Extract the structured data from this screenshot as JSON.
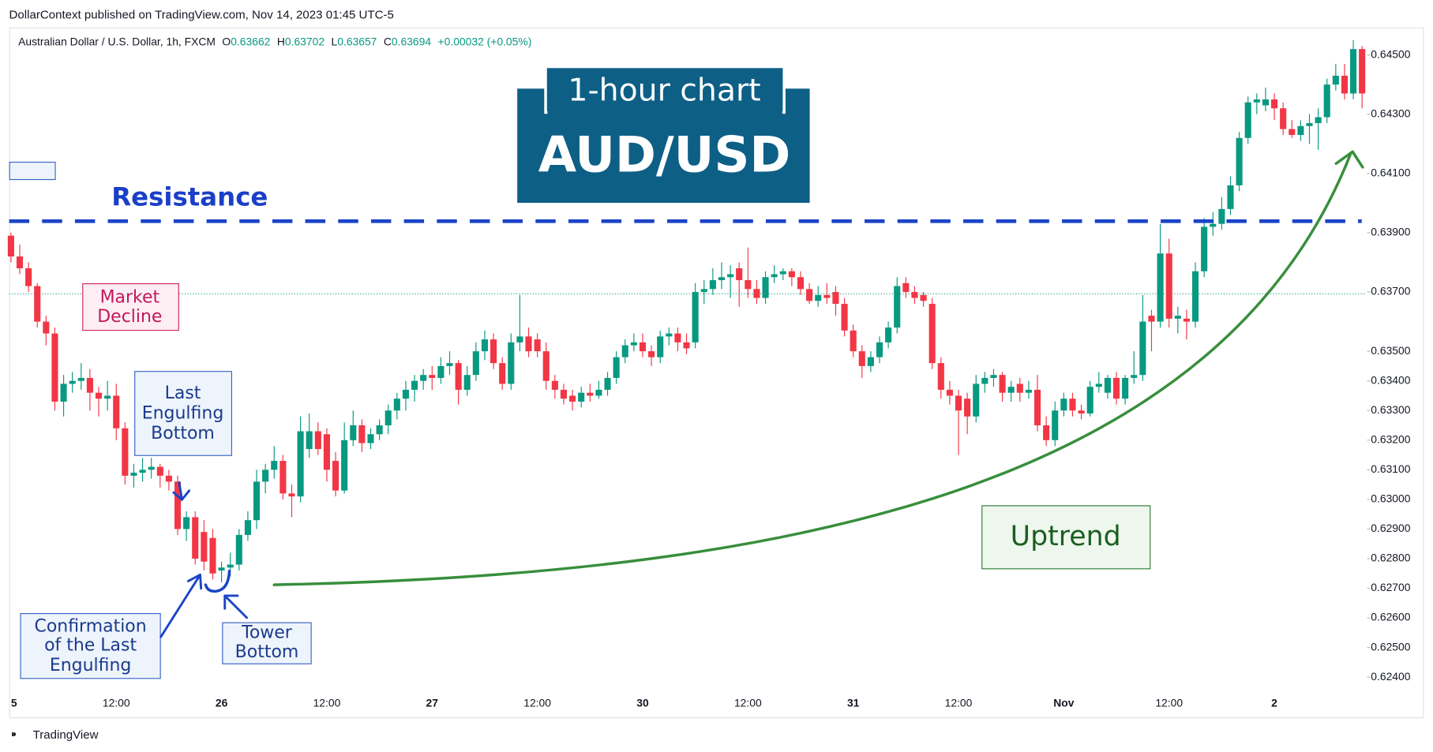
{
  "chart_data": {
    "type": "candlestick",
    "publisher": "DollarContext published on TradingView.com, Nov 14, 2023 01:45 UTC-5",
    "symbol": "Australian Dollar / U.S. Dollar, 1h, FXCM",
    "header_ohlc": [
      {
        "label": "O",
        "value": 0.63662
      },
      {
        "label": "H",
        "value": 0.63702
      },
      {
        "label": "L",
        "value": 0.63657
      },
      {
        "label": "C",
        "value": 0.63694
      }
    ],
    "change": "+0.00032 (+0.05%)",
    "title": "1-hour chart",
    "subtitle": "AUD/USD",
    "resistance_label": "Resistance",
    "resistance": 0.63939,
    "annotations": {
      "market_decline": [
        "Market",
        "Decline"
      ],
      "last_engulfing": [
        "Last",
        "Engulfing",
        "Bottom"
      ],
      "confirmation": [
        "Confirmation",
        "of the Last",
        "Engulfing"
      ],
      "tower_bottom": [
        "Tower",
        "Bottom"
      ],
      "uptrend": "Uptrend"
    },
    "footer": "TradingView",
    "up_color": "#089981",
    "down_color": "#f23645",
    "grid": false,
    "ylim": [
      0.62351,
      0.64593
    ],
    "yticks": [
      {
        "value": 0.645,
        "label": "0.64500"
      },
      {
        "value": 0.643,
        "label": "0.64300"
      },
      {
        "value": 0.641,
        "label": "0.64100"
      },
      {
        "value": 0.639,
        "label": "0.63900"
      },
      {
        "value": 0.637,
        "label": "0.63700"
      },
      {
        "value": 0.635,
        "label": "0.63500"
      },
      {
        "value": 0.634,
        "label": "0.63400"
      },
      {
        "value": 0.633,
        "label": "0.63300"
      },
      {
        "value": 0.632,
        "label": "0.63200"
      },
      {
        "value": 0.631,
        "label": "0.63100"
      },
      {
        "value": 0.63,
        "label": "0.63000"
      },
      {
        "value": 0.629,
        "label": "0.62900"
      },
      {
        "value": 0.628,
        "label": "0.62800"
      },
      {
        "value": 0.627,
        "label": "0.62700"
      },
      {
        "value": 0.626,
        "label": "0.62600"
      },
      {
        "value": 0.625,
        "label": "0.62500"
      },
      {
        "value": 0.624,
        "label": "0.62400"
      }
    ],
    "categories": [
      "5",
      null,
      null,
      null,
      null,
      null,
      null,
      null,
      null,
      null,
      null,
      null,
      "12:00",
      null,
      null,
      null,
      null,
      null,
      null,
      null,
      null,
      null,
      null,
      null,
      "26",
      null,
      null,
      null,
      null,
      null,
      null,
      null,
      null,
      null,
      null,
      null,
      "12:00",
      null,
      null,
      null,
      null,
      null,
      null,
      null,
      null,
      null,
      null,
      null,
      "27",
      null,
      null,
      null,
      null,
      null,
      null,
      null,
      null,
      null,
      null,
      null,
      "12:00",
      null,
      null,
      null,
      null,
      null,
      null,
      null,
      null,
      null,
      null,
      null,
      "30",
      null,
      null,
      null,
      null,
      null,
      null,
      null,
      null,
      null,
      null,
      null,
      "12:00",
      null,
      null,
      null,
      null,
      null,
      null,
      null,
      null,
      null,
      null,
      null,
      "31",
      null,
      null,
      null,
      null,
      null,
      null,
      null,
      null,
      null,
      null,
      null,
      "12:00",
      null,
      null,
      null,
      null,
      null,
      null,
      null,
      null,
      null,
      null,
      null,
      "Nov",
      null,
      null,
      null,
      null,
      null,
      null,
      null,
      null,
      null,
      null,
      null,
      "12:00",
      null,
      null,
      null,
      null,
      null,
      null,
      null,
      null,
      null,
      null,
      null,
      "2",
      null,
      null,
      null,
      null,
      null,
      null,
      null,
      null,
      null,
      null
    ],
    "ohlc": [
      [
        0.6389,
        0.639,
        0.638,
        0.6382
      ],
      [
        0.6382,
        0.6386,
        0.6376,
        0.6378
      ],
      [
        0.6378,
        0.638,
        0.637,
        0.6372
      ],
      [
        0.6372,
        0.6373,
        0.6358,
        0.636
      ],
      [
        0.636,
        0.6362,
        0.6352,
        0.6356
      ],
      [
        0.6356,
        0.6358,
        0.633,
        0.6333
      ],
      [
        0.6333,
        0.6342,
        0.6328,
        0.6339
      ],
      [
        0.6339,
        0.6343,
        0.6336,
        0.634
      ],
      [
        0.634,
        0.6346,
        0.6337,
        0.6341
      ],
      [
        0.6341,
        0.6344,
        0.633,
        0.6336
      ],
      [
        0.6336,
        0.6338,
        0.6328,
        0.6334
      ],
      [
        0.6334,
        0.634,
        0.633,
        0.6335
      ],
      [
        0.6335,
        0.6339,
        0.632,
        0.6324
      ],
      [
        0.6324,
        0.6326,
        0.6305,
        0.6308
      ],
      [
        0.6308,
        0.6312,
        0.6304,
        0.6309
      ],
      [
        0.6309,
        0.6314,
        0.6306,
        0.631
      ],
      [
        0.631,
        0.6314,
        0.6307,
        0.6311
      ],
      [
        0.6311,
        0.6312,
        0.6304,
        0.6308
      ],
      [
        0.6308,
        0.631,
        0.6303,
        0.6306
      ],
      [
        0.6306,
        0.6308,
        0.6288,
        0.629
      ],
      [
        0.629,
        0.6296,
        0.6286,
        0.6294
      ],
      [
        0.6294,
        0.6296,
        0.6278,
        0.628
      ],
      [
        0.6289,
        0.6293,
        0.6276,
        0.6279
      ],
      [
        0.6287,
        0.629,
        0.6273,
        0.6275
      ],
      [
        0.6276,
        0.6279,
        0.6272,
        0.6277
      ],
      [
        0.6277,
        0.6282,
        0.6274,
        0.6278
      ],
      [
        0.6278,
        0.629,
        0.6276,
        0.6288
      ],
      [
        0.6288,
        0.6296,
        0.6286,
        0.6293
      ],
      [
        0.6293,
        0.631,
        0.629,
        0.6306
      ],
      [
        0.6306,
        0.6312,
        0.6302,
        0.631
      ],
      [
        0.631,
        0.6318,
        0.6307,
        0.6313
      ],
      [
        0.6313,
        0.6315,
        0.63,
        0.6302
      ],
      [
        0.6302,
        0.6305,
        0.6294,
        0.6301
      ],
      [
        0.6301,
        0.6328,
        0.6299,
        0.6323
      ],
      [
        0.6317,
        0.6329,
        0.6314,
        0.6323
      ],
      [
        0.6323,
        0.6326,
        0.6315,
        0.6317
      ],
      [
        0.6322,
        0.6324,
        0.6306,
        0.631
      ],
      [
        0.6313,
        0.6316,
        0.6301,
        0.6303
      ],
      [
        0.6303,
        0.6326,
        0.6302,
        0.632
      ],
      [
        0.632,
        0.633,
        0.6318,
        0.6325
      ],
      [
        0.6325,
        0.6327,
        0.6316,
        0.6319
      ],
      [
        0.6319,
        0.6324,
        0.6317,
        0.6322
      ],
      [
        0.6322,
        0.6327,
        0.632,
        0.6325
      ],
      [
        0.6325,
        0.6332,
        0.6322,
        0.633
      ],
      [
        0.633,
        0.6336,
        0.6327,
        0.6334
      ],
      [
        0.6334,
        0.634,
        0.633,
        0.6337
      ],
      [
        0.6337,
        0.6342,
        0.6333,
        0.634
      ],
      [
        0.634,
        0.6344,
        0.6337,
        0.6342
      ],
      [
        0.6342,
        0.6345,
        0.6337,
        0.6341
      ],
      [
        0.6341,
        0.6348,
        0.6339,
        0.6345
      ],
      [
        0.6345,
        0.635,
        0.6342,
        0.6346
      ],
      [
        0.6346,
        0.6347,
        0.6332,
        0.6337
      ],
      [
        0.6337,
        0.6345,
        0.6335,
        0.6342
      ],
      [
        0.6342,
        0.6353,
        0.634,
        0.635
      ],
      [
        0.635,
        0.6357,
        0.6347,
        0.6354
      ],
      [
        0.6354,
        0.6356,
        0.6344,
        0.6346
      ],
      [
        0.6346,
        0.6348,
        0.6337,
        0.6339
      ],
      [
        0.6339,
        0.6356,
        0.6337,
        0.6353
      ],
      [
        0.6353,
        0.6369,
        0.635,
        0.6355
      ],
      [
        0.6355,
        0.6358,
        0.6348,
        0.635
      ],
      [
        0.6354,
        0.6356,
        0.6348,
        0.635
      ],
      [
        0.635,
        0.6353,
        0.6337,
        0.634
      ],
      [
        0.634,
        0.6342,
        0.6334,
        0.6337
      ],
      [
        0.6337,
        0.6339,
        0.6332,
        0.6334
      ],
      [
        0.6335,
        0.6337,
        0.633,
        0.6333
      ],
      [
        0.6333,
        0.6338,
        0.6331,
        0.6336
      ],
      [
        0.6336,
        0.6339,
        0.6333,
        0.6335
      ],
      [
        0.6335,
        0.634,
        0.6334,
        0.6337
      ],
      [
        0.6337,
        0.6343,
        0.6335,
        0.6341
      ],
      [
        0.6341,
        0.635,
        0.6339,
        0.6348
      ],
      [
        0.6348,
        0.6354,
        0.6346,
        0.6352
      ],
      [
        0.6352,
        0.6356,
        0.635,
        0.6353
      ],
      [
        0.6353,
        0.6356,
        0.6348,
        0.635
      ],
      [
        0.635,
        0.6352,
        0.6345,
        0.6348
      ],
      [
        0.6348,
        0.6357,
        0.6346,
        0.6355
      ],
      [
        0.6355,
        0.6358,
        0.6352,
        0.6356
      ],
      [
        0.6356,
        0.6358,
        0.635,
        0.6353
      ],
      [
        0.6353,
        0.6356,
        0.6349,
        0.6351
      ],
      [
        0.6353,
        0.6373,
        0.6351,
        0.637
      ],
      [
        0.637,
        0.6374,
        0.6366,
        0.6371
      ],
      [
        0.6371,
        0.6378,
        0.6369,
        0.6374
      ],
      [
        0.6374,
        0.638,
        0.6371,
        0.6375
      ],
      [
        0.6375,
        0.6379,
        0.6368,
        0.6376
      ],
      [
        0.6378,
        0.638,
        0.6365,
        0.6374
      ],
      [
        0.6374,
        0.6385,
        0.6368,
        0.6371
      ],
      [
        0.6371,
        0.6374,
        0.6366,
        0.6368
      ],
      [
        0.6368,
        0.6377,
        0.6366,
        0.6375
      ],
      [
        0.6375,
        0.6379,
        0.6373,
        0.6376
      ],
      [
        0.6376,
        0.6378,
        0.6374,
        0.6377
      ],
      [
        0.6377,
        0.6378,
        0.6372,
        0.6375
      ],
      [
        0.6375,
        0.6377,
        0.6369,
        0.6371
      ],
      [
        0.6371,
        0.6373,
        0.6366,
        0.6367
      ],
      [
        0.6367,
        0.6372,
        0.6365,
        0.6369
      ],
      [
        0.6369,
        0.6373,
        0.6366,
        0.6368
      ],
      [
        0.637,
        0.6372,
        0.6362,
        0.6366
      ],
      [
        0.6366,
        0.6368,
        0.6355,
        0.6357
      ],
      [
        0.6357,
        0.6359,
        0.6348,
        0.635
      ],
      [
        0.635,
        0.6352,
        0.6341,
        0.6345
      ],
      [
        0.6345,
        0.635,
        0.6343,
        0.6348
      ],
      [
        0.6348,
        0.6355,
        0.6346,
        0.6353
      ],
      [
        0.6353,
        0.636,
        0.6351,
        0.6358
      ],
      [
        0.6358,
        0.6375,
        0.6356,
        0.6372
      ],
      [
        0.6373,
        0.6375,
        0.6368,
        0.637
      ],
      [
        0.637,
        0.6372,
        0.6366,
        0.6368
      ],
      [
        0.6369,
        0.637,
        0.6365,
        0.6367
      ],
      [
        0.6366,
        0.6368,
        0.6344,
        0.6346
      ],
      [
        0.6346,
        0.6348,
        0.6334,
        0.6337
      ],
      [
        0.6337,
        0.634,
        0.6332,
        0.6335
      ],
      [
        0.6335,
        0.6337,
        0.6315,
        0.633
      ],
      [
        0.6334,
        0.6336,
        0.6322,
        0.6328
      ],
      [
        0.6328,
        0.6342,
        0.6326,
        0.6339
      ],
      [
        0.6339,
        0.6343,
        0.6336,
        0.6341
      ],
      [
        0.6341,
        0.6344,
        0.6338,
        0.6342
      ],
      [
        0.6342,
        0.6343,
        0.6333,
        0.6336
      ],
      [
        0.6336,
        0.634,
        0.6333,
        0.6338
      ],
      [
        0.6339,
        0.6341,
        0.6333,
        0.6336
      ],
      [
        0.6336,
        0.634,
        0.6334,
        0.6337
      ],
      [
        0.6337,
        0.6342,
        0.6323,
        0.6325
      ],
      [
        0.6325,
        0.6328,
        0.6318,
        0.632
      ],
      [
        0.632,
        0.6333,
        0.6318,
        0.633
      ],
      [
        0.633,
        0.6336,
        0.6328,
        0.6334
      ],
      [
        0.6334,
        0.6336,
        0.6328,
        0.633
      ],
      [
        0.633,
        0.6332,
        0.6327,
        0.6329
      ],
      [
        0.6329,
        0.634,
        0.6328,
        0.6338
      ],
      [
        0.6338,
        0.6343,
        0.6336,
        0.6339
      ],
      [
        0.6336,
        0.6342,
        0.6334,
        0.6341
      ],
      [
        0.6341,
        0.6343,
        0.6332,
        0.6334
      ],
      [
        0.6334,
        0.6342,
        0.6332,
        0.6341
      ],
      [
        0.6341,
        0.635,
        0.6339,
        0.6342
      ],
      [
        0.6342,
        0.6369,
        0.634,
        0.636
      ],
      [
        0.6362,
        0.6364,
        0.635,
        0.636
      ],
      [
        0.636,
        0.6393,
        0.6358,
        0.6383
      ],
      [
        0.6383,
        0.6388,
        0.6358,
        0.6361
      ],
      [
        0.6361,
        0.6365,
        0.6356,
        0.6362
      ],
      [
        0.6361,
        0.6364,
        0.6354,
        0.636
      ],
      [
        0.636,
        0.638,
        0.6358,
        0.6377
      ],
      [
        0.6377,
        0.6395,
        0.6375,
        0.6392
      ],
      [
        0.6392,
        0.6397,
        0.6389,
        0.6393
      ],
      [
        0.6393,
        0.6402,
        0.6391,
        0.6398
      ],
      [
        0.6398,
        0.6409,
        0.6396,
        0.6406
      ],
      [
        0.6406,
        0.6424,
        0.6404,
        0.6422
      ],
      [
        0.6422,
        0.6436,
        0.642,
        0.6434
      ],
      [
        0.6434,
        0.6437,
        0.643,
        0.6435
      ],
      [
        0.6433,
        0.6439,
        0.6431,
        0.6435
      ],
      [
        0.6435,
        0.6437,
        0.6428,
        0.6432
      ],
      [
        0.6432,
        0.6434,
        0.6423,
        0.6425
      ],
      [
        0.6425,
        0.6428,
        0.6422,
        0.6423
      ],
      [
        0.6423,
        0.6428,
        0.6421,
        0.6426
      ],
      [
        0.6426,
        0.643,
        0.642,
        0.6427
      ],
      [
        0.6427,
        0.6432,
        0.6418,
        0.6429
      ],
      [
        0.6429,
        0.6442,
        0.6427,
        0.644
      ],
      [
        0.644,
        0.6447,
        0.6438,
        0.6443
      ],
      [
        0.6443,
        0.6447,
        0.6435,
        0.6437
      ],
      [
        0.6437,
        0.6455,
        0.6435,
        0.6452
      ],
      [
        0.6452,
        0.6453,
        0.6432,
        0.6437
      ]
    ]
  }
}
